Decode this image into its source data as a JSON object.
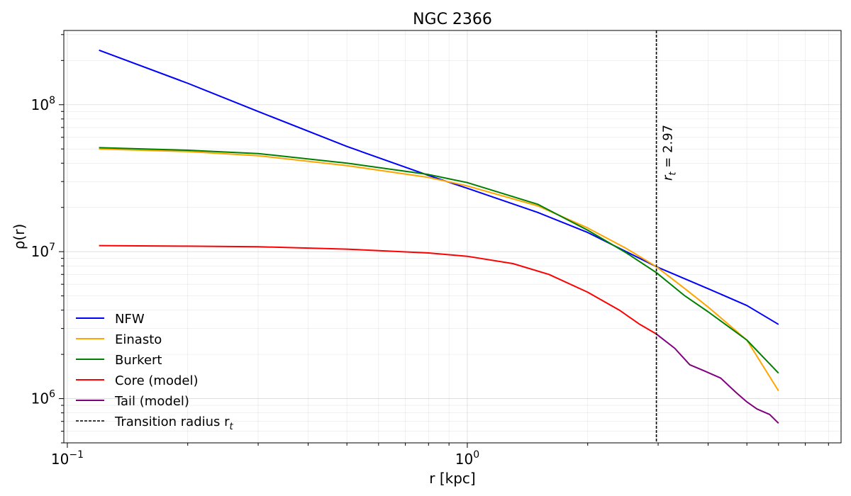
{
  "chart_data": {
    "type": "line",
    "title": "NGC 2366",
    "xlabel": "r [kpc]",
    "ylabel": "ρ(r)",
    "xscale": "log",
    "yscale": "log",
    "xlim": [
      0.098,
      8.6
    ],
    "ylim": [
      500000,
      320000000
    ],
    "x_ticks": [
      {
        "value": 0.1,
        "base": "10",
        "exp": "−1"
      },
      {
        "value": 1,
        "base": "10",
        "exp": "0"
      }
    ],
    "y_ticks": [
      {
        "value": 1000000,
        "base": "10",
        "exp": "6"
      },
      {
        "value": 10000000,
        "base": "10",
        "exp": "7"
      },
      {
        "value": 100000000,
        "base": "10",
        "exp": "8"
      }
    ],
    "grid": true,
    "legend_position": "lower-left",
    "series": [
      {
        "name": "NFW",
        "color": "#0000ff",
        "style": "solid",
        "points": [
          [
            0.12,
            235000000
          ],
          [
            0.2,
            140000000
          ],
          [
            0.3,
            90000000
          ],
          [
            0.5,
            52000000
          ],
          [
            0.8,
            33000000
          ],
          [
            1.0,
            27000000
          ],
          [
            1.5,
            18500000
          ],
          [
            2.0,
            13500000
          ],
          [
            2.97,
            7900000
          ],
          [
            4.0,
            5600000
          ],
          [
            5.0,
            4300000
          ],
          [
            6.0,
            3200000
          ]
        ]
      },
      {
        "name": "Einasto",
        "color": "#ffa500",
        "style": "solid",
        "points": [
          [
            0.12,
            50000000
          ],
          [
            0.2,
            48000000
          ],
          [
            0.3,
            45000000
          ],
          [
            0.5,
            38500000
          ],
          [
            0.8,
            32000000
          ],
          [
            1.0,
            28000000
          ],
          [
            1.5,
            20500000
          ],
          [
            2.0,
            14500000
          ],
          [
            2.5,
            10500000
          ],
          [
            2.97,
            7900000
          ],
          [
            3.5,
            5600000
          ],
          [
            4.0,
            4200000
          ],
          [
            5.0,
            2500000
          ],
          [
            6.0,
            1130000
          ]
        ]
      },
      {
        "name": "Burkert",
        "color": "#008000",
        "style": "solid",
        "points": [
          [
            0.12,
            51000000
          ],
          [
            0.2,
            49000000
          ],
          [
            0.3,
            46500000
          ],
          [
            0.5,
            40000000
          ],
          [
            0.8,
            33500000
          ],
          [
            1.0,
            29500000
          ],
          [
            1.5,
            21000000
          ],
          [
            2.0,
            14000000
          ],
          [
            2.5,
            9800000
          ],
          [
            2.97,
            7200000
          ],
          [
            3.5,
            5000000
          ],
          [
            4.0,
            3900000
          ],
          [
            5.0,
            2500000
          ],
          [
            6.0,
            1490000
          ]
        ]
      },
      {
        "name": "Core (model)",
        "color": "#ff0000",
        "style": "solid",
        "points": [
          [
            0.12,
            11000000
          ],
          [
            0.2,
            10900000
          ],
          [
            0.3,
            10800000
          ],
          [
            0.5,
            10400000
          ],
          [
            0.8,
            9800000
          ],
          [
            1.0,
            9300000
          ],
          [
            1.3,
            8300000
          ],
          [
            1.6,
            7000000
          ],
          [
            2.0,
            5300000
          ],
          [
            2.4,
            4000000
          ],
          [
            2.7,
            3200000
          ],
          [
            2.97,
            2750000
          ]
        ]
      },
      {
        "name": "Tail (model)",
        "color": "#800080",
        "style": "solid",
        "points": [
          [
            2.97,
            2750000
          ],
          [
            3.3,
            2200000
          ],
          [
            3.6,
            1700000
          ],
          [
            3.9,
            1550000
          ],
          [
            4.3,
            1380000
          ],
          [
            4.7,
            1100000
          ],
          [
            5.0,
            950000
          ],
          [
            5.3,
            850000
          ],
          [
            5.7,
            780000
          ],
          [
            6.0,
            680000
          ]
        ]
      }
    ],
    "vline": {
      "x": 2.97,
      "color": "#000000",
      "style": "dashed",
      "legend": "Transition radius r",
      "legend_sub": "t",
      "label_prefix": "r",
      "label_sub": "t",
      "label_rest": " = 2.97"
    }
  }
}
